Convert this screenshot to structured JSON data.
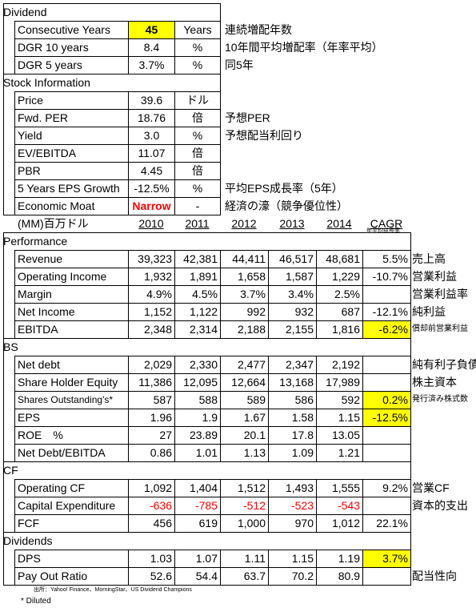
{
  "dividend": {
    "title": "Dividend",
    "rows": [
      {
        "label": "Consecutive Years",
        "value": "45",
        "unit": "Years",
        "note": "連続増配年数",
        "highlight": true
      },
      {
        "label": "DGR 10 years",
        "value": "8.4",
        "unit": "%",
        "note": "10年間平均増配率（年率平均）"
      },
      {
        "label": "DGR 5 years",
        "value": "3.7%",
        "unit": "%",
        "note": "同5年"
      }
    ]
  },
  "stock": {
    "title": "Stock Information",
    "rows": [
      {
        "label": "Price",
        "value": "39.6",
        "unit": "ドル"
      },
      {
        "label": "Fwd. PER",
        "value": "18.76",
        "unit": "倍",
        "note": "予想PER"
      },
      {
        "label": "Yield",
        "value": "3.0",
        "unit": "%",
        "note": "予想配当利回り"
      },
      {
        "label": "EV/EBITDA",
        "value": "11.07",
        "unit": "倍"
      },
      {
        "label": "PBR",
        "value": "4.45",
        "unit": "倍"
      },
      {
        "label": "5 Years EPS Growth",
        "value": "-12.5%",
        "unit": "%",
        "note": "平均EPS成長率（5年）"
      },
      {
        "label": "Economic Moat",
        "value": "Narrow",
        "unit": "-",
        "note": "経済の濠（競争優位性）",
        "red": true
      }
    ]
  },
  "financials": {
    "unit_label": "(MM)百万ドル",
    "columns": [
      "2010",
      "2011",
      "2012",
      "2013",
      "2014",
      "CAGR"
    ],
    "cagr_note": "年平均成長率",
    "sections": [
      {
        "title": "Performance",
        "rows": [
          {
            "label": "Revenue",
            "values": [
              "39,323",
              "42,381",
              "44,411",
              "46,517",
              "48,681"
            ],
            "cagr": "5.5%",
            "note": "売上高"
          },
          {
            "label": "Operating Income",
            "values": [
              "1,932",
              "1,891",
              "1,658",
              "1,587",
              "1,229"
            ],
            "cagr": "-10.7%",
            "note": "営業利益"
          },
          {
            "label": "Margin",
            "values": [
              "4.9%",
              "4.5%",
              "3.7%",
              "3.4%",
              "2.5%"
            ],
            "note": "営業利益率"
          },
          {
            "label": "Net Income",
            "values": [
              "1,152",
              "1,122",
              "992",
              "932",
              "687"
            ],
            "cagr": "-12.1%",
            "note": "純利益"
          },
          {
            "label": "EBITDA",
            "values": [
              "2,348",
              "2,314",
              "2,188",
              "2,155",
              "1,816"
            ],
            "cagr": "-6.2%",
            "note": "償却前営業利益",
            "highlight": true
          }
        ]
      },
      {
        "title": "BS",
        "rows": [
          {
            "label": "Net debt",
            "values": [
              "2,029",
              "2,330",
              "2,477",
              "2,347",
              "2,192"
            ],
            "note": "純有利子負債"
          },
          {
            "label": "Share Holder Equity",
            "values": [
              "11,386",
              "12,095",
              "12,664",
              "13,168",
              "17,989"
            ],
            "note": "株主資本"
          },
          {
            "label": "Shares Outstanding's*",
            "values": [
              "587",
              "588",
              "589",
              "586",
              "592"
            ],
            "cagr": "0.2%",
            "note": "発行済み株式数",
            "highlight": true
          },
          {
            "label": "EPS",
            "values": [
              "1.96",
              "1.9",
              "1.67",
              "1.58",
              "1.15"
            ],
            "cagr": "-12.5%",
            "highlight": true
          },
          {
            "label": "ROE　%",
            "values": [
              "27",
              "23.89",
              "20.1",
              "17.8",
              "13.05"
            ]
          },
          {
            "label": "Net Debt/EBITDA",
            "values": [
              "0.86",
              "1.01",
              "1.13",
              "1.09",
              "1.21"
            ]
          }
        ]
      },
      {
        "title": "CF",
        "rows": [
          {
            "label": "Operating CF",
            "values": [
              "1,092",
              "1,404",
              "1,512",
              "1,493",
              "1,555"
            ],
            "cagr": "9.2%",
            "note": "営業CF"
          },
          {
            "label": "Capital Expenditure",
            "values": [
              "-636",
              "-785",
              "-512",
              "-523",
              "-543"
            ],
            "note": "資本的支出",
            "red": true
          },
          {
            "label": "FCF",
            "values": [
              "456",
              "619",
              "1,000",
              "970",
              "1,012"
            ],
            "cagr": "22.1%"
          }
        ]
      },
      {
        "title": "Dividends",
        "rows": [
          {
            "label": "DPS",
            "values": [
              "1.03",
              "1.07",
              "1.11",
              "1.15",
              "1.19"
            ],
            "cagr": "3.7%",
            "highlight": true
          },
          {
            "label": "Pay Out Ratio",
            "values": [
              "52.6",
              "54.4",
              "63.7",
              "70.2",
              "80.9"
            ],
            "note": "配当性向"
          }
        ]
      }
    ]
  },
  "footnotes": [
    "出所：Yahoo! Finance、MorningStar、US Dividend Champions",
    "* Diluted"
  ]
}
